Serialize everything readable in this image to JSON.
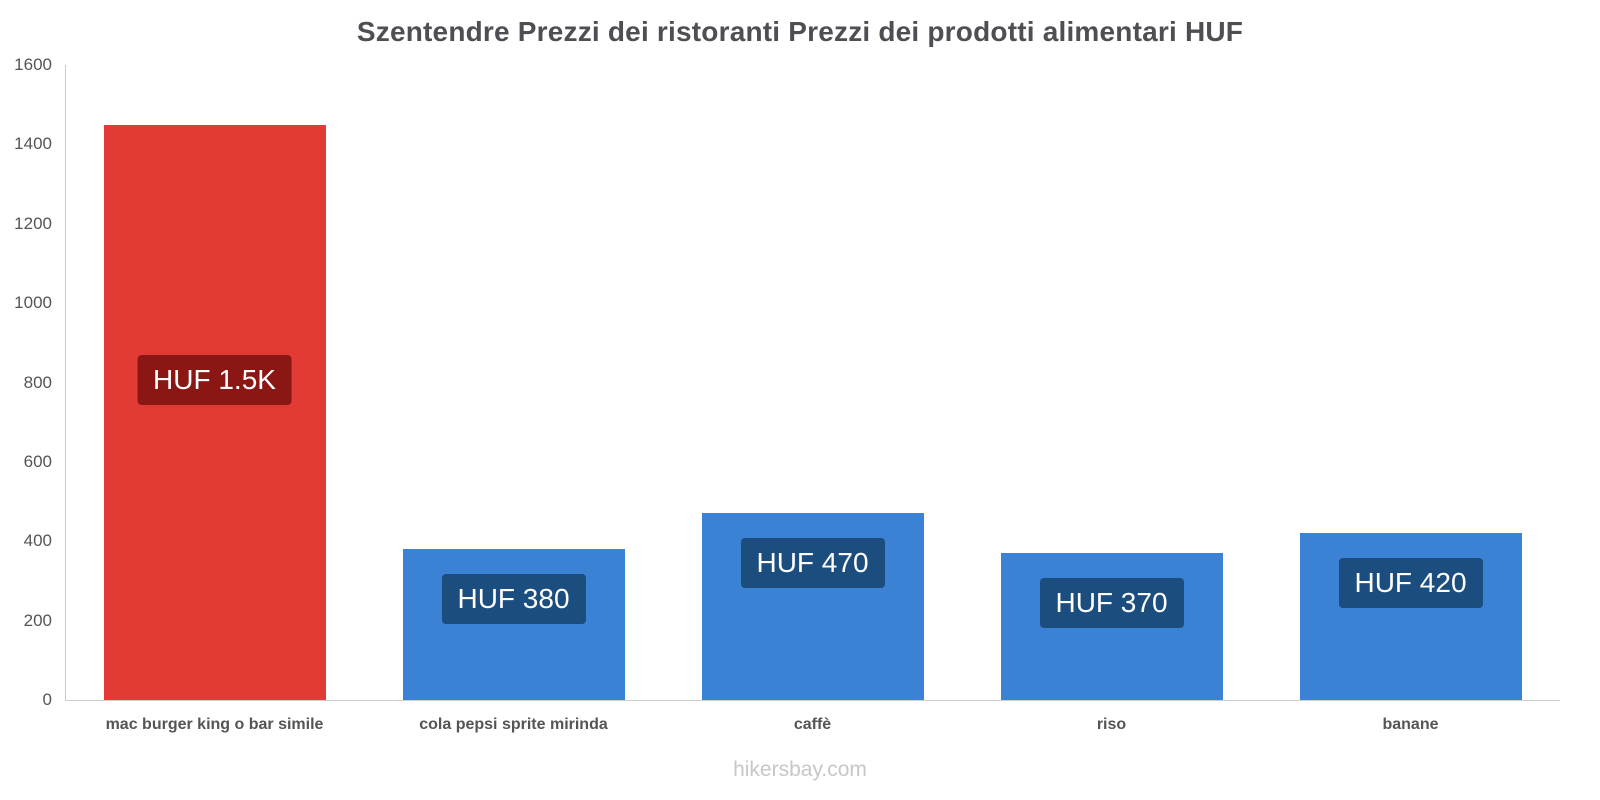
{
  "title": "Szentendre Prezzi dei ristoranti Prezzi dei prodotti alimentari HUF",
  "footer": "hikersbay.com",
  "chart_data": {
    "type": "bar",
    "title": "Szentendre Prezzi dei ristoranti Prezzi dei prodotti alimentari HUF",
    "categories": [
      "mac burger king o bar simile",
      "cola pepsi sprite mirinda",
      "caffè",
      "riso",
      "banane"
    ],
    "values": [
      1450,
      380,
      470,
      370,
      420
    ],
    "bar_labels": [
      "HUF 1.5K",
      "HUF 380",
      "HUF 470",
      "HUF 370",
      "HUF 420"
    ],
    "bar_colors": [
      "#e23b35",
      "#3b82d5",
      "#3b82d5",
      "#3b82d5",
      "#3b82d5"
    ],
    "label_bg_colors": [
      "#8a1713",
      "#1b4d7e",
      "#1b4d7e",
      "#1b4d7e",
      "#1b4d7e"
    ],
    "xlabel": "",
    "ylabel": "",
    "ylim": [
      0,
      1600
    ],
    "yticks": [
      0,
      200,
      400,
      600,
      800,
      1000,
      1200,
      1400,
      1600
    ],
    "grid": false,
    "legend": false,
    "currency": "HUF",
    "watermark": "hikersbay.com"
  }
}
